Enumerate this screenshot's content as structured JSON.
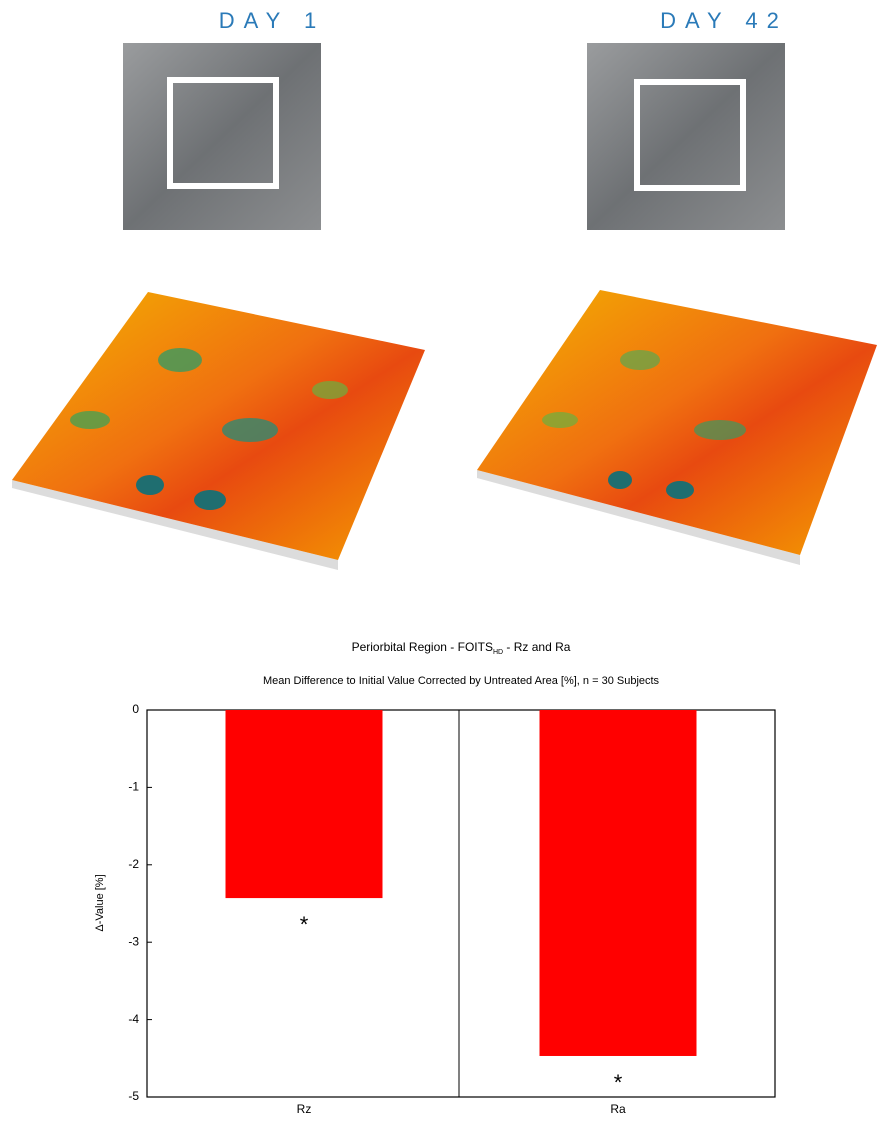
{
  "panels": {
    "left_label": "DAY 1",
    "right_label": "DAY 42"
  },
  "chart_data": {
    "type": "bar",
    "title": "Periorbital Region - FOITS",
    "title_subscript": "HD",
    "title_suffix": " - Rz and Ra",
    "subtitle": "Mean Difference to Initial Value Corrected by Untreated Area [%], n = 30 Subjects",
    "y_label": "Δ-Value [%]",
    "categories": [
      "Rz",
      "Ra"
    ],
    "values": [
      -2.43,
      -4.47
    ],
    "color": "#ff0000",
    "annotations": [
      "*",
      "*"
    ],
    "ylim": [
      -5,
      0
    ],
    "yticks": [
      0,
      -1,
      -2,
      -3,
      -4,
      -5
    ]
  }
}
